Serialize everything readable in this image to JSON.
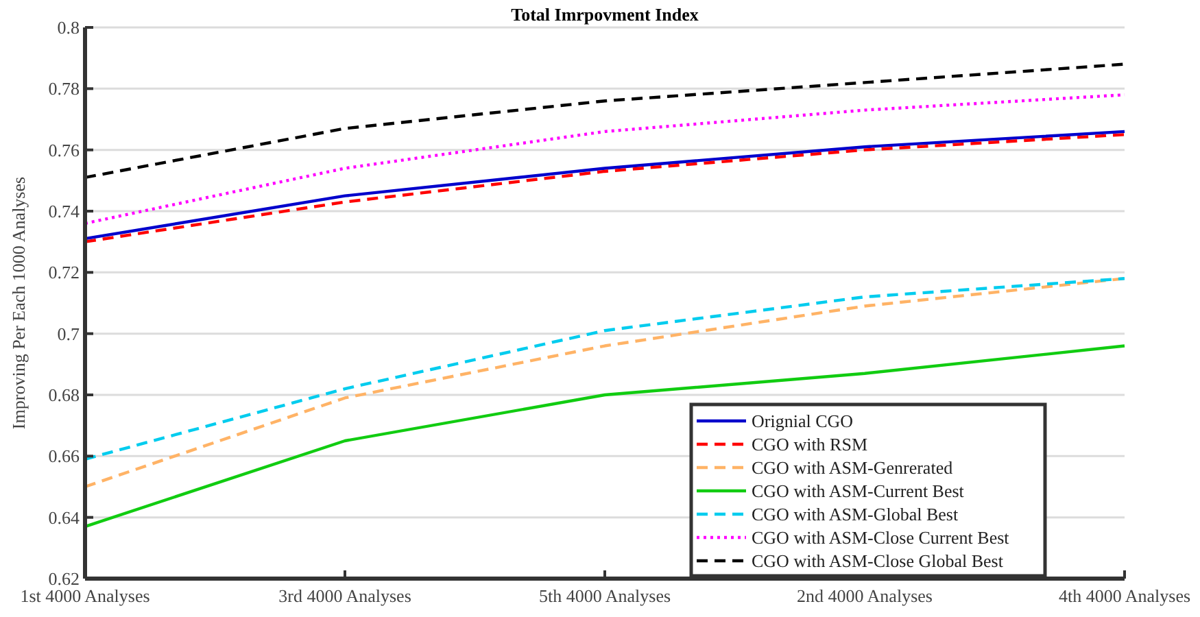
{
  "chart_data": {
    "type": "line",
    "title": "Total Imrpovment Index",
    "ylabel": "Improving Per Each 1000 Analyses",
    "categories": [
      "1st 4000 Analyses",
      "3rd 4000 Analyses",
      "5th 4000 Analyses",
      "2nd 4000 Analyses",
      "4th 4000 Analyses"
    ],
    "series": [
      {
        "name": "Orignial CGO",
        "color": "#0000cc",
        "line_style": "solid",
        "values": [
          0.731,
          0.745,
          0.754,
          0.761,
          0.766
        ]
      },
      {
        "name": "CGO with RSM",
        "color": "#ff0000",
        "line_style": "dashed",
        "values": [
          0.73,
          0.743,
          0.753,
          0.76,
          0.765
        ]
      },
      {
        "name": "CGO with ASM-Genrerated",
        "color": "#ffb366",
        "line_style": "dashed",
        "values": [
          0.65,
          0.679,
          0.696,
          0.709,
          0.718
        ]
      },
      {
        "name": "CGO with ASM-Current Best",
        "color": "#11cc11",
        "line_style": "solid",
        "values": [
          0.637,
          0.665,
          0.68,
          0.687,
          0.696
        ]
      },
      {
        "name": "CGO with ASM-Global Best",
        "color": "#00ccee",
        "line_style": "dashed",
        "values": [
          0.659,
          0.682,
          0.701,
          0.712,
          0.718
        ]
      },
      {
        "name": "CGO with ASM-Close Current Best",
        "color": "#ff00ff",
        "line_style": "dotted",
        "values": [
          0.736,
          0.754,
          0.766,
          0.773,
          0.778
        ]
      },
      {
        "name": "CGO with ASM-Close Global Best",
        "color": "#000000",
        "line_style": "dashed",
        "values": [
          0.751,
          0.767,
          0.776,
          0.782,
          0.788
        ]
      }
    ],
    "ylim": [
      0.62,
      0.8
    ],
    "yticks": [
      0.62,
      0.64,
      0.66,
      0.68,
      0.7,
      0.72,
      0.74,
      0.76,
      0.78,
      0.8
    ],
    "grid": "y",
    "legend": "bottom right",
    "marker": "none"
  }
}
